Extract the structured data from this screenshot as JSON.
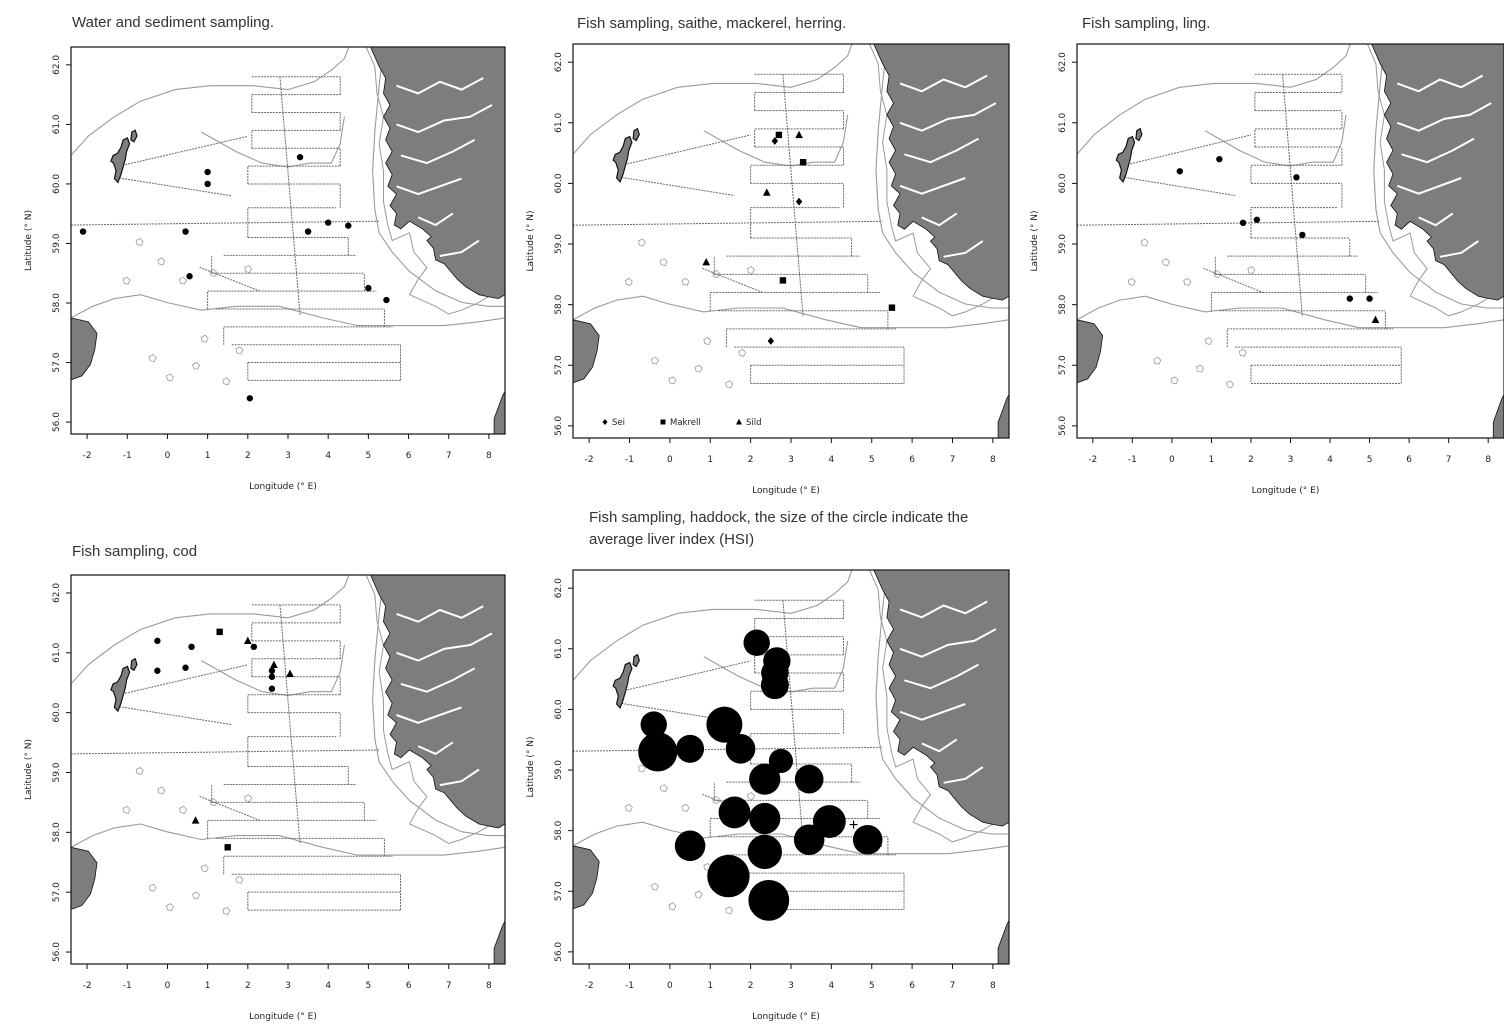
{
  "colors": {
    "land": "#7d7d7d",
    "landStroke": "#111111",
    "contour": "#9a9a9a",
    "track": "#6a6a6a",
    "marker": "#000000",
    "frame": "#111111"
  },
  "panels": [
    {
      "id": "water-sediment",
      "title": "Water and sediment sampling.",
      "xlabel": "Longitude (° E)",
      "ylabel": "Latitude (° N)",
      "samples": [
        {
          "lon": -2.1,
          "lat": 59.2,
          "shape": "circle"
        },
        {
          "lon": 0.45,
          "lat": 59.2,
          "shape": "circle"
        },
        {
          "lon": 1.0,
          "lat": 60.2,
          "shape": "circle"
        },
        {
          "lon": 1.0,
          "lat": 60.0,
          "shape": "circle"
        },
        {
          "lon": 3.3,
          "lat": 60.45,
          "shape": "circle"
        },
        {
          "lon": 0.55,
          "lat": 58.45,
          "shape": "circle"
        },
        {
          "lon": 3.5,
          "lat": 59.2,
          "shape": "circle"
        },
        {
          "lon": 4.0,
          "lat": 59.35,
          "shape": "circle"
        },
        {
          "lon": 4.5,
          "lat": 59.3,
          "shape": "circle"
        },
        {
          "lon": 5.0,
          "lat": 58.25,
          "shape": "circle"
        },
        {
          "lon": 5.45,
          "lat": 58.05,
          "shape": "circle"
        },
        {
          "lon": 2.05,
          "lat": 56.4,
          "shape": "circle"
        }
      ]
    },
    {
      "id": "saithe-mackerel-herring",
      "title": "Fish sampling, saithe, mackerel, herring.",
      "xlabel": "Longitude (° E)",
      "ylabel": "Latitude (° N)",
      "legend": [
        {
          "label": "Sei",
          "shape": "diamond"
        },
        {
          "label": "Makrell",
          "shape": "square"
        },
        {
          "label": "Sild",
          "shape": "triangle"
        }
      ],
      "samples": [
        {
          "lon": 2.6,
          "lat": 60.7,
          "shape": "diamond"
        },
        {
          "lon": 2.7,
          "lat": 60.8,
          "shape": "square"
        },
        {
          "lon": 3.2,
          "lat": 60.8,
          "shape": "triangle"
        },
        {
          "lon": 3.3,
          "lat": 60.35,
          "shape": "square"
        },
        {
          "lon": 2.4,
          "lat": 59.85,
          "shape": "triangle"
        },
        {
          "lon": 3.2,
          "lat": 59.7,
          "shape": "diamond"
        },
        {
          "lon": 0.9,
          "lat": 58.7,
          "shape": "triangle"
        },
        {
          "lon": 2.8,
          "lat": 58.4,
          "shape": "square"
        },
        {
          "lon": 5.5,
          "lat": 57.95,
          "shape": "square"
        },
        {
          "lon": 2.5,
          "lat": 57.4,
          "shape": "diamond"
        }
      ]
    },
    {
      "id": "ling",
      "title": "Fish sampling, ling.",
      "xlabel": "Longitude (° E)",
      "ylabel": "Latitude (° N)",
      "samples": [
        {
          "lon": 0.2,
          "lat": 60.2,
          "shape": "circle"
        },
        {
          "lon": 1.2,
          "lat": 60.4,
          "shape": "circle"
        },
        {
          "lon": 3.15,
          "lat": 60.1,
          "shape": "circle"
        },
        {
          "lon": 1.8,
          "lat": 59.35,
          "shape": "circle"
        },
        {
          "lon": 2.15,
          "lat": 59.4,
          "shape": "circle"
        },
        {
          "lon": 3.3,
          "lat": 59.15,
          "shape": "circle"
        },
        {
          "lon": 4.5,
          "lat": 58.1,
          "shape": "circle"
        },
        {
          "lon": 5.0,
          "lat": 58.1,
          "shape": "circle"
        },
        {
          "lon": 5.15,
          "lat": 57.75,
          "shape": "triangle"
        }
      ]
    },
    {
      "id": "cod",
      "title": "Fish sampling, cod",
      "xlabel": "Longitude (° E)",
      "ylabel": "Latitude (° N)",
      "samples": [
        {
          "lon": -0.25,
          "lat": 61.2,
          "shape": "circle"
        },
        {
          "lon": 0.6,
          "lat": 61.1,
          "shape": "circle"
        },
        {
          "lon": 1.3,
          "lat": 61.35,
          "shape": "square"
        },
        {
          "lon": 2.0,
          "lat": 61.2,
          "shape": "triangle"
        },
        {
          "lon": 2.15,
          "lat": 61.1,
          "shape": "circle"
        },
        {
          "lon": -0.25,
          "lat": 60.7,
          "shape": "circle"
        },
        {
          "lon": 0.45,
          "lat": 60.75,
          "shape": "circle"
        },
        {
          "lon": 2.65,
          "lat": 60.8,
          "shape": "triangle"
        },
        {
          "lon": 2.6,
          "lat": 60.7,
          "shape": "circle"
        },
        {
          "lon": 2.6,
          "lat": 60.6,
          "shape": "circle"
        },
        {
          "lon": 3.05,
          "lat": 60.65,
          "shape": "triangle"
        },
        {
          "lon": 2.6,
          "lat": 60.4,
          "shape": "circle"
        },
        {
          "lon": 0.7,
          "lat": 58.2,
          "shape": "triangle"
        },
        {
          "lon": 1.5,
          "lat": 57.75,
          "shape": "square"
        }
      ]
    },
    {
      "id": "haddock",
      "title": "Fish sampling, haddock, the size of the circle indicate the average liver index (HSI)",
      "xlabel": "Longitude (° E)",
      "ylabel": "Latitude (° N)",
      "samples": [
        {
          "lon": 2.15,
          "lat": 61.1,
          "hsi": 0.45
        },
        {
          "lon": 2.65,
          "lat": 60.8,
          "hsi": 0.48
        },
        {
          "lon": 2.6,
          "lat": 60.6,
          "hsi": 0.48
        },
        {
          "lon": 2.6,
          "lat": 60.4,
          "hsi": 0.5
        },
        {
          "lon": -0.4,
          "lat": 59.75,
          "hsi": 0.45
        },
        {
          "lon": 1.35,
          "lat": 59.75,
          "hsi": 0.75
        },
        {
          "lon": -0.3,
          "lat": 59.3,
          "hsi": 0.85
        },
        {
          "lon": 0.5,
          "lat": 59.35,
          "hsi": 0.5
        },
        {
          "lon": 1.75,
          "lat": 59.35,
          "hsi": 0.55
        },
        {
          "lon": 2.75,
          "lat": 59.15,
          "hsi": 0.38
        },
        {
          "lon": 2.35,
          "lat": 58.85,
          "hsi": 0.6
        },
        {
          "lon": 3.45,
          "lat": 58.85,
          "hsi": 0.52
        },
        {
          "lon": 1.6,
          "lat": 58.3,
          "hsi": 0.62
        },
        {
          "lon": 2.35,
          "lat": 58.2,
          "hsi": 0.6
        },
        {
          "lon": 3.95,
          "lat": 58.15,
          "hsi": 0.65
        },
        {
          "lon": 3.45,
          "lat": 57.85,
          "hsi": 0.58
        },
        {
          "lon": 4.9,
          "lat": 57.85,
          "hsi": 0.55
        },
        {
          "lon": 0.5,
          "lat": 57.75,
          "hsi": 0.58
        },
        {
          "lon": 2.35,
          "lat": 57.65,
          "hsi": 0.7
        },
        {
          "lon": 1.45,
          "lat": 57.25,
          "hsi": 0.95
        },
        {
          "lon": 2.45,
          "lat": 56.85,
          "hsi": 0.9
        }
      ],
      "crosses": [
        {
          "lon": 4.55,
          "lat": 58.1
        },
        {
          "lon": 5.15,
          "lat": 57.75
        }
      ]
    }
  ],
  "axis": {
    "lon_ticks": [
      "-2",
      "-1",
      "0",
      "1",
      "2",
      "3",
      "4",
      "5",
      "6",
      "7",
      "8"
    ],
    "lat_ticks": [
      "56.0",
      "57.0",
      "58.0",
      "59.0",
      "60.0",
      "61.0",
      "62.0"
    ],
    "xlim": [
      -2.4,
      8.4
    ],
    "ylim": [
      55.8,
      62.3
    ]
  }
}
